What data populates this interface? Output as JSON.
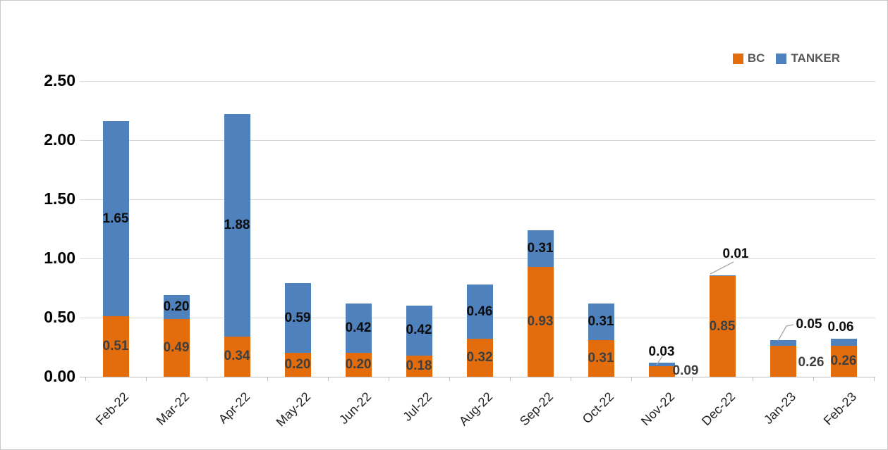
{
  "chart_data": {
    "type": "bar",
    "variant": "stacked-column",
    "title": "",
    "categories": [
      "Feb-22",
      "Mar-22",
      "Apr-22",
      "May-22",
      "Jun-22",
      "Jul-22",
      "Aug-22",
      "Sep-22",
      "Oct-22",
      "Nov-22",
      "Dec-22",
      "Jan-23",
      "Feb-23"
    ],
    "series": [
      {
        "name": "BC",
        "color": "#E36D0C",
        "label_color": "#3F3F3F",
        "values": [
          0.51,
          0.49,
          0.34,
          0.2,
          0.2,
          0.18,
          0.32,
          0.93,
          0.31,
          0.09,
          0.85,
          0.26,
          0.26
        ],
        "data_labels": [
          "0.51",
          "0.49",
          "0.34",
          "0.20",
          "0.20",
          "0.18",
          "0.32",
          "0.93",
          "0.31",
          "0.09",
          "0.85",
          "0.26",
          "0.26"
        ],
        "label_placements": [
          "center",
          "center",
          "center",
          "center",
          "center",
          "center",
          "center",
          "center",
          "center",
          "outside-right",
          "center",
          "outside-right",
          "center"
        ]
      },
      {
        "name": "TANKER",
        "color": "#4F81BD",
        "label_color": "#0D0D0D",
        "values": [
          1.65,
          0.2,
          1.88,
          0.59,
          0.42,
          0.42,
          0.46,
          0.31,
          0.31,
          0.03,
          0.01,
          0.05,
          0.06
        ],
        "data_labels": [
          "1.65",
          "0.20",
          "1.88",
          "0.59",
          "0.42",
          "0.42",
          "0.46",
          "0.31",
          "0.31",
          "0.03",
          "0.01",
          "0.05",
          "0.06"
        ],
        "label_placements": [
          "center",
          "center",
          "center",
          "center",
          "center",
          "center",
          "center",
          "center",
          "center",
          "callout-above",
          "callout-above",
          "callout-above",
          "above"
        ]
      }
    ],
    "y_axis": {
      "min": 0,
      "max": 2.5,
      "step": 0.5,
      "tick_labels": [
        "0.00",
        "0.50",
        "1.00",
        "1.50",
        "2.00",
        "2.50"
      ]
    },
    "x_axis": {
      "label_rotation_deg": 45
    },
    "grid": true,
    "legend": {
      "position": "top-right",
      "items": [
        {
          "label": "BC",
          "color": "#E36D0C"
        },
        {
          "label": "TANKER",
          "color": "#4F81BD"
        }
      ]
    },
    "colors": {
      "gridline": "#D9D9D9",
      "axis": "#BFBFBF",
      "leader_line": "#A6A6A6",
      "legend_text": "#595959"
    }
  }
}
